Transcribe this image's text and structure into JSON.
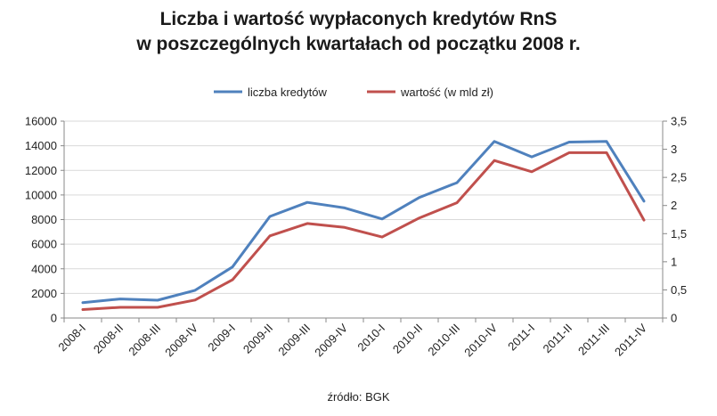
{
  "chart_data": {
    "type": "line",
    "title_line1": "Liczba i wartość wypłaconych kredytów RnS",
    "title_line2": "w poszczególnych kwartałach od początku 2008 r.",
    "categories": [
      "2008-I",
      "2008-II",
      "2008-III",
      "2008-IV",
      "2009-I",
      "2009-II",
      "2009-III",
      "2009-IV",
      "2010-I",
      "2010-II",
      "2010-III",
      "2010-IV",
      "2011-I",
      "2011-II",
      "2011-III",
      "2011-IV"
    ],
    "series": [
      {
        "name": "liczba kredytów",
        "axis": "left",
        "color": "#4f81bd",
        "values": [
          1250,
          1550,
          1450,
          2250,
          4150,
          8250,
          9400,
          8950,
          8050,
          9800,
          11000,
          14350,
          13100,
          14300,
          14350,
          9500
        ]
      },
      {
        "name": "wartość (w mld zł)",
        "axis": "right",
        "color": "#c0504d",
        "values": [
          0.15,
          0.19,
          0.19,
          0.32,
          0.68,
          1.46,
          1.68,
          1.61,
          1.44,
          1.78,
          2.05,
          2.8,
          2.6,
          2.94,
          2.94,
          1.74
        ]
      }
    ],
    "y_left": {
      "min": 0,
      "max": 16000,
      "ticks": [
        "0",
        "2000",
        "4000",
        "6000",
        "8000",
        "10000",
        "12000",
        "14000",
        "16000"
      ]
    },
    "y_right": {
      "min": 0,
      "max": 3.5,
      "ticks": [
        "0",
        "0,5",
        "1",
        "1,5",
        "2",
        "2,5",
        "3",
        "3,5"
      ]
    },
    "grid": true,
    "legend_position": "top"
  },
  "source": "źródło: BGK"
}
